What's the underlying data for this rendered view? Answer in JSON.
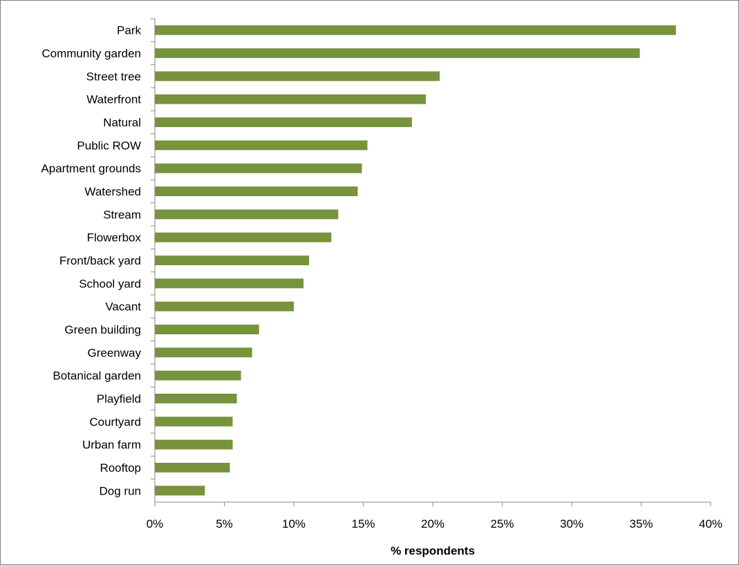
{
  "chart_data": {
    "type": "bar",
    "orientation": "horizontal",
    "categories": [
      "Park",
      "Community garden",
      "Street tree",
      "Waterfront",
      "Natural",
      "Public ROW",
      "Apartment grounds",
      "Watershed",
      "Stream",
      "Flowerbox",
      "Front/back yard",
      "School yard",
      "Vacant",
      "Green building",
      "Greenway",
      "Botanical garden",
      "Playfield",
      "Courtyard",
      "Urban farm",
      "Rooftop",
      "Dog run"
    ],
    "values": [
      37.5,
      34.9,
      20.5,
      19.5,
      18.5,
      15.3,
      14.9,
      14.6,
      13.2,
      12.7,
      11.1,
      10.7,
      10.0,
      7.5,
      7.0,
      6.2,
      5.9,
      5.6,
      5.6,
      5.4,
      3.6
    ],
    "title": "",
    "xlabel": "% respondents",
    "ylabel": "",
    "xlim": [
      0,
      40
    ],
    "x_ticks": [
      0,
      5,
      10,
      15,
      20,
      25,
      30,
      35,
      40
    ],
    "x_tick_labels": [
      "0%",
      "5%",
      "10%",
      "15%",
      "20%",
      "25%",
      "30%",
      "35%",
      "40%"
    ],
    "grid": false,
    "legend": "none",
    "bar_color": "#77933c"
  }
}
